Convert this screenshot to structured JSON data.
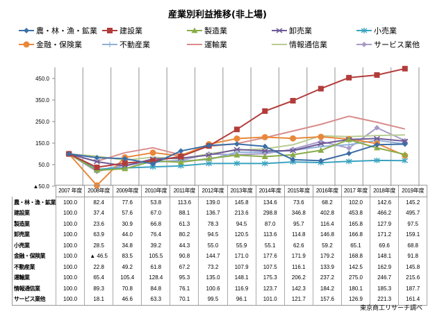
{
  "chart_data": {
    "type": "line",
    "title": "産業別利益推移(非上場)",
    "xlabel": "",
    "ylabel": "",
    "ylim": [
      -50,
      500
    ],
    "yticks": [
      -50,
      50,
      150,
      250,
      350,
      450
    ],
    "ytick_labels": [
      "▲50.0",
      "50.0",
      "150.0",
      "250.0",
      "350.0",
      "450.0"
    ],
    "grid": "vertical",
    "legend": "top",
    "categories": [
      "2007 年度",
      "2008年度",
      "2009年度",
      "2010年度",
      "2011年度",
      "2012年度",
      "2013年度",
      "2014年度",
      "2015年度",
      "2016年度",
      "2017 年度",
      "2018年度",
      "2019年度"
    ],
    "series": [
      {
        "name": "農・林・漁・鉱業",
        "table_label": "農・林・漁・鉱業",
        "color": "#3c6ea6",
        "marker": "diamond",
        "values": [
          100.0,
          82.4,
          77.6,
          53.8,
          113.6,
          139.0,
          145.8,
          134.6,
          73.6,
          68.2,
          102.0,
          142.6,
          145.2
        ],
        "display": [
          "100.0",
          "82.4",
          "77.6",
          "53.8",
          "113.6",
          "139.0",
          "145.8",
          "134.6",
          "73.6",
          "68.2",
          "102.0",
          "142.6",
          "145.2"
        ]
      },
      {
        "name": "建設業",
        "table_label": "建設業",
        "color": "#b23c3a",
        "marker": "square",
        "values": [
          100.0,
          37.4,
          57.6,
          67.0,
          88.1,
          136.7,
          213.6,
          298.8,
          346.8,
          402.8,
          453.8,
          466.2,
          495.7
        ],
        "display": [
          "100.0",
          "37.4",
          "57.6",
          "67.0",
          "88.1",
          "136.7",
          "213.6",
          "298.8",
          "346.8",
          "402.8",
          "453.8",
          "466.2",
          "495.7"
        ]
      },
      {
        "name": "製造業",
        "table_label": "製造業",
        "color": "#8aab48",
        "marker": "triangle",
        "values": [
          100.0,
          23.6,
          30.9,
          66.8,
          61.3,
          78.3,
          94.5,
          87.0,
          95.7,
          116.4,
          165.8,
          127.9,
          97.5
        ],
        "display": [
          "100.0",
          "23.6",
          "30.9",
          "66.8",
          "61.3",
          "78.3",
          "94.5",
          "87.0",
          "95.7",
          "116.4",
          "165.8",
          "127.9",
          "97.5"
        ]
      },
      {
        "name": "卸売業",
        "table_label": "卸売業",
        "color": "#6e5a96",
        "marker": "x",
        "values": [
          100.0,
          63.9,
          44.0,
          76.4,
          80.2,
          94.5,
          120.5,
          113.6,
          114.8,
          146.8,
          166.8,
          171.2,
          159.1
        ],
        "display": [
          "100.0",
          "63.9",
          "44.0",
          "76.4",
          "80.2",
          "94.5",
          "120.5",
          "113.6",
          "114.8",
          "146.8",
          "166.8",
          "171.2",
          "159.1"
        ]
      },
      {
        "name": "小売業",
        "table_label": "小売業",
        "color": "#3aa3c0",
        "marker": "star",
        "values": [
          100.0,
          28.5,
          34.8,
          39.2,
          44.3,
          55.0,
          55.9,
          55.1,
          62.6,
          59.2,
          65.1,
          69.6,
          68.8
        ],
        "display": [
          "100.0",
          "28.5",
          "34.8",
          "39.2",
          "44.3",
          "55.0",
          "55.9",
          "55.1",
          "62.6",
          "59.2",
          "65.1",
          "69.6",
          "68.8"
        ]
      },
      {
        "name": "金融・保険業",
        "table_label": "金融・保険業",
        "color": "#e8883a",
        "marker": "circle",
        "values": [
          100.0,
          -46.5,
          83.5,
          105.5,
          90.8,
          144.7,
          171.0,
          177.6,
          171.9,
          179.2,
          168.8,
          148.1,
          91.8
        ],
        "display": [
          "100.0",
          "▲ 46.5",
          "83.5",
          "105.5",
          "90.8",
          "144.7",
          "171.0",
          "177.6",
          "171.9",
          "179.2",
          "168.8",
          "148.1",
          "91.8"
        ]
      },
      {
        "name": "不動産業",
        "table_label": "不動産業",
        "color": "#8fb0d8",
        "marker": "plus",
        "values": [
          100.0,
          22.8,
          49.2,
          61.8,
          67.2,
          73.2,
          107.9,
          107.5,
          116.1,
          133.9,
          142.5,
          162.9,
          145.8
        ],
        "display": [
          "100.0",
          "22.8",
          "49.2",
          "61.8",
          "67.2",
          "73.2",
          "107.9",
          "107.5",
          "116.1",
          "133.9",
          "142.5",
          "162.9",
          "145.8"
        ]
      },
      {
        "name": "運輸業",
        "table_label": "運輸業",
        "color": "#d88c8a",
        "marker": "none",
        "values": [
          100.0,
          65.4,
          105.4,
          128.4,
          95.3,
          135.0,
          148.1,
          175.3,
          206.2,
          237.2,
          275.0,
          246.7,
          215.6
        ],
        "display": [
          "100.0",
          "65.4",
          "105.4",
          "128.4",
          "95.3",
          "135.0",
          "148.1",
          "175.3",
          "206.2",
          "237.2",
          "275.0",
          "246.7",
          "215.6"
        ]
      },
      {
        "name": "情報通信業",
        "table_label": "情報通信業",
        "color": "#b8cc94",
        "marker": "none",
        "values": [
          100.0,
          89.3,
          70.8,
          84.8,
          76.1,
          100.6,
          116.9,
          123.7,
          142.3,
          184.2,
          180.1,
          185.3,
          187.7
        ],
        "display": [
          "100.0",
          "89.3",
          "70.8",
          "84.8",
          "76.1",
          "100.6",
          "116.9",
          "123.7",
          "142.3",
          "184.2",
          "180.1",
          "185.3",
          "187.7"
        ]
      },
      {
        "name": "サービス業他",
        "table_label": "サービス業他",
        "color": "#a99ac8",
        "marker": "diamond",
        "values": [
          100.0,
          18.1,
          46.6,
          63.3,
          70.1,
          99.5,
          96.1,
          101.0,
          121.7,
          157.6,
          126.9,
          221.3,
          161.4
        ],
        "display": [
          "100.0",
          "18.1",
          "46.6",
          "63.3",
          "70.1",
          "99.5",
          "96.1",
          "101.0",
          "121.7",
          "157.6",
          "126.9",
          "221.3",
          "161.4"
        ]
      }
    ]
  },
  "source": "東京商工リサーチ調べ"
}
